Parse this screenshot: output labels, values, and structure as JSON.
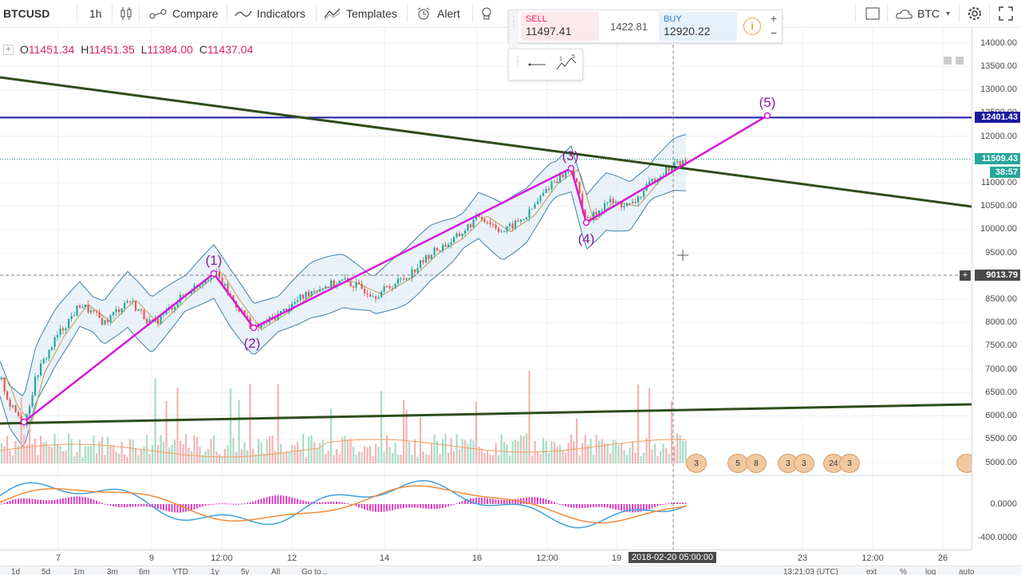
{
  "toolbar": {
    "symbol": "BTCUSD",
    "interval": "1h",
    "compare_label": "Compare",
    "indicators_label": "Indicators",
    "templates_label": "Templates",
    "alert_label": "Alert",
    "currency_label": "BTC",
    "icons": [
      "candles-icon",
      "compare-icon",
      "indicators-icon",
      "templates-icon",
      "alert-icon",
      "lightbulb-icon",
      "square-icon",
      "cloud-icon",
      "gear-icon",
      "fullscreen-icon"
    ]
  },
  "trade_widget": {
    "sell_label": "SELL",
    "sell_price": "11497.41",
    "spread": "1422.81",
    "buy_label": "BUY",
    "buy_price": "12920.22",
    "plus": "+",
    "minus": "−"
  },
  "ohlc": {
    "o_label": "O",
    "o": "11451.34",
    "h_label": "H",
    "h": "11451.35",
    "l_label": "L",
    "l": "11384.00",
    "c_label": "C",
    "c": "11437.04"
  },
  "price_scale": {
    "ticks": [
      "14000.00",
      "13500.00",
      "13000.00",
      "12500.00",
      "12000.00",
      "11000.00",
      "10500.00",
      "10000.00",
      "9500.00",
      "8500.00",
      "8000.00",
      "7500.00",
      "7000.00",
      "6500.00",
      "6000.00",
      "5500.00",
      "5000.00"
    ],
    "label_resistance": "12401.43",
    "label_last": "11509.43",
    "label_countdown": "38:57",
    "label_cursor": "9013.79",
    "osc_ticks": [
      "0.0000",
      "-400.0000"
    ]
  },
  "time_axis": {
    "ticks": [
      "7",
      "9",
      "12:00",
      "12",
      "14",
      "16",
      "12:00",
      "19",
      "23",
      "12:00",
      "26"
    ],
    "highlight": "2018-02-20 05:00:00"
  },
  "bottom_bar": {
    "ranges": [
      "1d",
      "5d",
      "1m",
      "3m",
      "6m",
      "YTD",
      "1y",
      "5y",
      "All",
      "Go to..."
    ],
    "clock": "13:21:03 (UTC)",
    "right": [
      "ext",
      "%",
      "log",
      "auto"
    ]
  },
  "waves": [
    "(1)",
    "(2)",
    "(3)",
    "(4)",
    "(5)"
  ],
  "event_badges": [
    "3",
    "5",
    "8",
    "3",
    "3",
    "24",
    "3"
  ],
  "colors": {
    "up": "#26a69a",
    "down": "#ef5350",
    "wave": "#d61ad6",
    "wave_label": "#8a1a9b",
    "resistance": "#1a1aa0",
    "trendline": "#2e4d19",
    "last_price": "#26a69a",
    "band_fill": "#cfe3f0",
    "macd": "#3fa0e0",
    "signal": "#f08a3a",
    "hist": "#e040c0"
  },
  "chart_data": {
    "type": "candlestick",
    "symbol": "BTCUSD",
    "interval": "1h",
    "y_range": [
      4800,
      14200
    ],
    "price_path": [
      [
        0,
        6800
      ],
      [
        12,
        6200
      ],
      [
        30,
        5850
      ],
      [
        45,
        6900
      ],
      [
        70,
        7700
      ],
      [
        100,
        8400
      ],
      [
        130,
        8000
      ],
      [
        160,
        8500
      ],
      [
        190,
        7950
      ],
      [
        230,
        8600
      ],
      [
        268,
        9100
      ],
      [
        290,
        8500
      ],
      [
        318,
        7850
      ],
      [
        350,
        8200
      ],
      [
        390,
        8700
      ],
      [
        430,
        8900
      ],
      [
        470,
        8600
      ],
      [
        510,
        9000
      ],
      [
        540,
        9500
      ],
      [
        570,
        9800
      ],
      [
        600,
        10300
      ],
      [
        630,
        9950
      ],
      [
        660,
        10300
      ],
      [
        690,
        11000
      ],
      [
        716,
        11300
      ],
      [
        735,
        10150
      ],
      [
        760,
        10600
      ],
      [
        790,
        10500
      ],
      [
        820,
        11100
      ],
      [
        845,
        11400
      ],
      [
        860,
        11437
      ]
    ],
    "resistance_level": 12401.43,
    "last_price": 11509.43,
    "waves": [
      {
        "label": "(1)",
        "value": 9100
      },
      {
        "label": "(2)",
        "value": 7850
      },
      {
        "label": "(3)",
        "value": 11300
      },
      {
        "label": "(4)",
        "value": 10150
      },
      {
        "label": "(5)",
        "value": 12401
      }
    ]
  }
}
